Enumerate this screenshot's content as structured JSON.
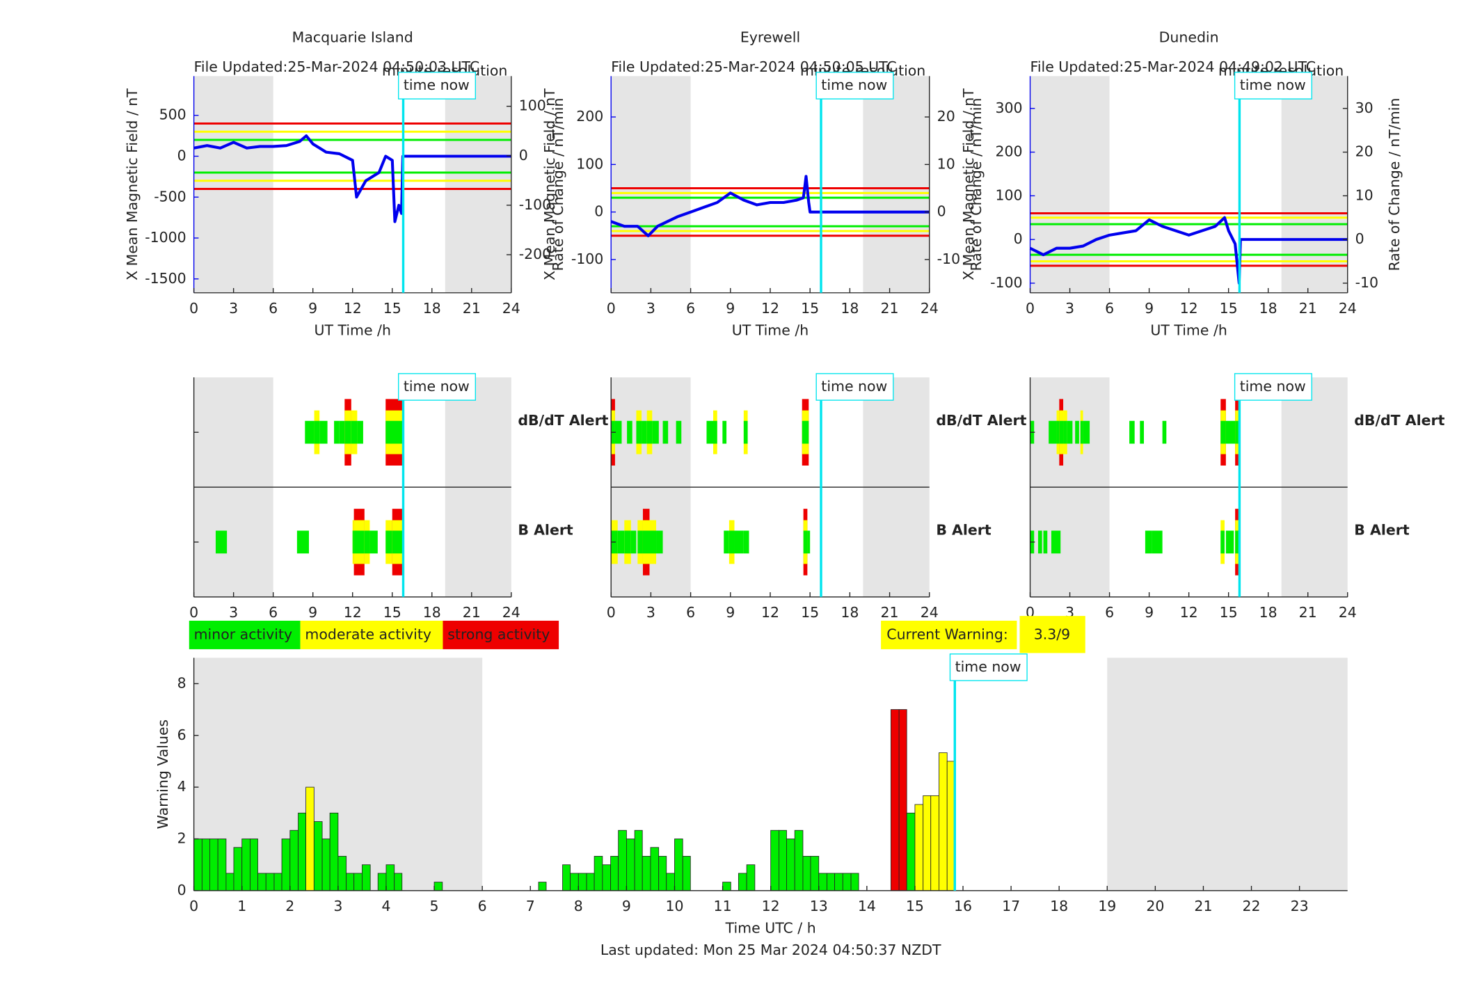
{
  "chart_data": [
    {
      "type": "line",
      "title": "Macquarie Island",
      "note": "File Updated:25-Mar-2024 04:50:03 UTC",
      "resolution": "minute resolution",
      "xlabel": "UT Time /h",
      "ylabel": "X Mean Magnetic Field / nT",
      "y2label": "Rate of Change / nT/min",
      "xlim": [
        0,
        24
      ],
      "xticks": [
        0,
        3,
        6,
        9,
        12,
        15,
        18,
        21,
        24
      ],
      "ylim": [
        -1670,
        980
      ],
      "yticks": [
        -1500,
        -1000,
        -500,
        0,
        500
      ],
      "y2lim": [
        -277,
        161
      ],
      "y2ticks": [
        -200,
        -100,
        0,
        100
      ],
      "shaded": [
        [
          0,
          6
        ],
        [
          19,
          24
        ]
      ],
      "time_now": 15.83,
      "time_now_label": "time now",
      "thresholds": [
        {
          "value": 400,
          "color": "#e00"
        },
        {
          "value": 300,
          "color": "#ff0"
        },
        {
          "value": 200,
          "color": "#0e0"
        },
        {
          "value": -200,
          "color": "#0e0"
        },
        {
          "value": -300,
          "color": "#ff0"
        },
        {
          "value": -400,
          "color": "#e00"
        }
      ],
      "series": [
        {
          "color": "#0000ee",
          "x": [
            0,
            1,
            2,
            3,
            4,
            5,
            6,
            7,
            8,
            8.5,
            9,
            10,
            11,
            12,
            12.3,
            13,
            14,
            14.5,
            15,
            15.2,
            15.5,
            15.7,
            15.8,
            24
          ],
          "values": [
            100,
            130,
            100,
            170,
            100,
            120,
            120,
            130,
            180,
            250,
            150,
            50,
            30,
            -50,
            -500,
            -300,
            -200,
            0,
            -50,
            -800,
            -600,
            -700,
            0,
            0
          ]
        }
      ]
    },
    {
      "type": "line",
      "title": "Eyrewell",
      "note": "File Updated:25-Mar-2024 04:50:05 UTC",
      "resolution": "minute resolution",
      "xlabel": "UT Time /h",
      "ylabel": "X Mean Magnetic Field / nT",
      "y2label": "Rate of Change / nT/min",
      "xlim": [
        0,
        24
      ],
      "xticks": [
        0,
        3,
        6,
        9,
        12,
        15,
        18,
        21,
        24
      ],
      "ylim": [
        -170,
        286
      ],
      "yticks": [
        -100,
        0,
        100,
        200
      ],
      "y2lim": [
        -17,
        28.6
      ],
      "y2ticks": [
        -10,
        0,
        10,
        20
      ],
      "shaded": [
        [
          0,
          6
        ],
        [
          19,
          24
        ]
      ],
      "time_now": 15.83,
      "time_now_label": "time now",
      "thresholds": [
        {
          "value": 50,
          "color": "#e00"
        },
        {
          "value": 40,
          "color": "#ff0"
        },
        {
          "value": 30,
          "color": "#0e0"
        },
        {
          "value": -30,
          "color": "#0e0"
        },
        {
          "value": -40,
          "color": "#ff0"
        },
        {
          "value": -50,
          "color": "#e00"
        }
      ],
      "series": [
        {
          "color": "#0000ee",
          "x": [
            0,
            1,
            2,
            2.8,
            3.5,
            5,
            6,
            7,
            8,
            9,
            10,
            11,
            12,
            13,
            14,
            14.5,
            14.7,
            14.9,
            15,
            24
          ],
          "values": [
            -20,
            -30,
            -30,
            -50,
            -30,
            -10,
            0,
            10,
            20,
            40,
            25,
            15,
            20,
            20,
            25,
            30,
            75,
            20,
            0,
            0
          ]
        }
      ]
    },
    {
      "type": "line",
      "title": "Dunedin",
      "note": "File Updated:25-Mar-2024 04:49:02 UTC",
      "resolution": "minute resolution",
      "xlabel": "UT Time /h",
      "ylabel": "X Mean Magnetic Field / nT",
      "y2label": "Rate of Change / nT/min",
      "xlim": [
        0,
        24
      ],
      "xticks": [
        0,
        3,
        6,
        9,
        12,
        15,
        18,
        21,
        24
      ],
      "ylim": [
        -122,
        374
      ],
      "yticks": [
        -100,
        0,
        100,
        200,
        300
      ],
      "y2lim": [
        -12.2,
        37.4
      ],
      "y2ticks": [
        -10,
        0,
        10,
        20,
        30
      ],
      "shaded": [
        [
          0,
          6
        ],
        [
          19,
          24
        ]
      ],
      "time_now": 15.83,
      "time_now_label": "time now",
      "thresholds": [
        {
          "value": 60,
          "color": "#e00"
        },
        {
          "value": 50,
          "color": "#ff0"
        },
        {
          "value": 35,
          "color": "#0e0"
        },
        {
          "value": -35,
          "color": "#0e0"
        },
        {
          "value": -50,
          "color": "#ff0"
        },
        {
          "value": -60,
          "color": "#e00"
        }
      ],
      "series": [
        {
          "color": "#0000ee",
          "x": [
            0,
            1,
            2,
            3,
            4,
            5,
            6,
            7,
            8,
            9,
            10,
            11,
            12,
            13,
            14,
            14.7,
            15,
            15.5,
            15.8,
            15.9,
            24
          ],
          "values": [
            -20,
            -35,
            -20,
            -20,
            -15,
            0,
            10,
            15,
            20,
            45,
            30,
            20,
            10,
            20,
            30,
            50,
            20,
            -10,
            -100,
            0,
            0
          ]
        }
      ]
    },
    {
      "type": "alert",
      "xlim": [
        0,
        24
      ],
      "xticks": [
        0,
        3,
        6,
        9,
        12,
        15,
        18,
        21,
        24
      ],
      "shaded": [
        [
          0,
          6
        ],
        [
          19,
          24
        ]
      ],
      "time_now": 15.83,
      "time_now_label": "time now",
      "rows": [
        {
          "name": "dB/dT Alert",
          "color": "#000",
          "segments": [
            [
              8.4,
              9.1,
              1
            ],
            [
              9.1,
              9.5,
              2
            ],
            [
              9.5,
              10.1,
              1
            ],
            [
              10.6,
              11.0,
              1
            ],
            [
              11.0,
              11.4,
              1
            ],
            [
              11.4,
              11.9,
              3
            ],
            [
              11.9,
              12.35,
              2
            ],
            [
              12.35,
              12.8,
              1
            ],
            [
              14.5,
              15.8,
              3
            ]
          ]
        },
        {
          "name": "B Alert",
          "color": "#0000ee",
          "segments": [
            [
              1.65,
              2.5,
              1
            ],
            [
              7.8,
              8.7,
              1
            ],
            [
              12.0,
              12.1,
              2
            ],
            [
              12.1,
              12.9,
              3
            ],
            [
              12.9,
              13.3,
              2
            ],
            [
              13.3,
              13.9,
              1
            ],
            [
              14.5,
              15.0,
              2
            ],
            [
              15.0,
              15.8,
              3
            ]
          ]
        }
      ]
    },
    {
      "type": "alert",
      "xlim": [
        0,
        24
      ],
      "xticks": [
        0,
        3,
        6,
        9,
        12,
        15,
        18,
        21,
        24
      ],
      "shaded": [
        [
          0,
          6
        ],
        [
          19,
          24
        ]
      ],
      "time_now": 15.83,
      "time_now_label": "time now",
      "rows": [
        {
          "name": "dB/dT Alert",
          "color": "#000",
          "segments": [
            [
              0,
              0.3,
              3
            ],
            [
              0.3,
              0.8,
              1
            ],
            [
              1.2,
              1.6,
              1
            ],
            [
              1.9,
              2.3,
              2
            ],
            [
              2.3,
              2.7,
              1
            ],
            [
              2.7,
              3.1,
              2
            ],
            [
              3.1,
              3.6,
              1
            ],
            [
              3.9,
              4.3,
              1
            ],
            [
              4.9,
              5.3,
              1
            ],
            [
              7.2,
              7.7,
              1
            ],
            [
              7.7,
              8.0,
              2
            ],
            [
              8.4,
              8.7,
              1
            ],
            [
              10.0,
              10.3,
              2
            ],
            [
              14.4,
              14.9,
              3
            ]
          ]
        },
        {
          "name": "B Alert",
          "color": "#0000ee",
          "segments": [
            [
              0,
              0.5,
              2
            ],
            [
              0.5,
              1.0,
              1
            ],
            [
              1.0,
              1.5,
              2
            ],
            [
              1.5,
              1.9,
              1
            ],
            [
              2.0,
              2.4,
              2
            ],
            [
              2.4,
              2.9,
              3
            ],
            [
              2.9,
              3.4,
              2
            ],
            [
              3.4,
              3.9,
              1
            ],
            [
              8.5,
              8.9,
              1
            ],
            [
              8.9,
              9.3,
              2
            ],
            [
              9.3,
              10.0,
              1
            ],
            [
              10.0,
              10.4,
              1
            ],
            [
              14.5,
              14.8,
              3
            ],
            [
              14.8,
              15.0,
              1
            ]
          ]
        }
      ]
    },
    {
      "type": "alert",
      "xlim": [
        0,
        24
      ],
      "xticks": [
        0,
        3,
        6,
        9,
        12,
        15,
        18,
        21,
        24
      ],
      "shaded": [
        [
          0,
          6
        ],
        [
          19,
          24
        ]
      ],
      "time_now": 15.83,
      "time_now_label": "time now",
      "rows": [
        {
          "name": "dB/dT Alert",
          "color": "#000",
          "segments": [
            [
              0,
              0.3,
              1
            ],
            [
              1.4,
              2.0,
              1
            ],
            [
              2.0,
              2.2,
              2
            ],
            [
              2.2,
              2.5,
              3
            ],
            [
              2.5,
              2.8,
              2
            ],
            [
              2.8,
              3.2,
              1
            ],
            [
              3.4,
              3.7,
              1
            ],
            [
              3.8,
              4.0,
              2
            ],
            [
              4.0,
              4.5,
              1
            ],
            [
              7.5,
              7.9,
              1
            ],
            [
              8.3,
              8.6,
              1
            ],
            [
              10.0,
              10.3,
              1
            ],
            [
              14.4,
              14.8,
              3
            ],
            [
              14.8,
              15.5,
              1
            ],
            [
              15.5,
              15.8,
              3
            ]
          ]
        },
        {
          "name": "B Alert",
          "color": "#0000ee",
          "segments": [
            [
              0,
              0.3,
              1
            ],
            [
              0.6,
              0.9,
              1
            ],
            [
              1.0,
              1.3,
              1
            ],
            [
              1.6,
              2.3,
              1
            ],
            [
              8.7,
              9.2,
              1
            ],
            [
              9.2,
              10.0,
              1
            ],
            [
              14.4,
              14.7,
              2
            ],
            [
              14.8,
              15.4,
              1
            ],
            [
              15.5,
              15.8,
              3
            ]
          ]
        }
      ]
    },
    {
      "type": "histogram",
      "xlabel": "Time UTC / h",
      "ylabel": "Warning Values",
      "footer": "Last updated: Mon 25 Mar 2024 04:50:37 NZDT",
      "xlim": [
        0,
        24
      ],
      "xticks": [
        0,
        1,
        2,
        3,
        4,
        5,
        6,
        7,
        8,
        9,
        10,
        11,
        12,
        13,
        14,
        15,
        16,
        17,
        18,
        19,
        20,
        21,
        22,
        23
      ],
      "ylim": [
        0,
        9
      ],
      "yticks": [
        0,
        2,
        4,
        6,
        8
      ],
      "shaded": [
        [
          0,
          6
        ],
        [
          19,
          24
        ]
      ],
      "time_now": 15.83,
      "time_now_label": "time now",
      "bins": [
        0,
        0.17,
        0.33,
        0.5,
        0.67,
        0.83,
        1,
        1.17,
        1.33,
        1.5,
        1.67,
        1.83,
        2,
        2.17,
        2.33,
        2.5,
        2.67,
        2.83,
        3,
        3.17,
        3.33,
        3.5,
        3.67,
        3.83,
        4,
        4.17,
        4.33,
        4.5,
        4.67,
        4.83,
        5,
        5.17,
        5.33,
        5.5,
        5.67,
        5.83,
        6,
        6.17,
        6.33,
        6.5,
        6.67,
        6.83,
        7,
        7.17,
        7.33,
        7.5,
        7.67,
        7.83,
        8,
        8.17,
        8.33,
        8.5,
        8.67,
        8.83,
        9,
        9.17,
        9.33,
        9.5,
        9.67,
        9.83,
        10,
        10.17,
        10.33,
        10.5,
        10.67,
        10.83,
        11,
        11.17,
        11.33,
        11.5,
        11.67,
        11.83,
        12,
        12.17,
        12.33,
        12.5,
        12.67,
        12.83,
        13,
        13.17,
        13.33,
        13.5,
        13.67,
        13.83,
        14,
        14.17,
        14.33,
        14.5,
        14.67,
        14.83,
        15,
        15.17,
        15.33,
        15.5,
        15.67,
        15.83
      ],
      "values": [
        2,
        2,
        2,
        2,
        0.67,
        1.67,
        2,
        2,
        0.67,
        0.67,
        0.67,
        2,
        2.33,
        3,
        4,
        2.67,
        2,
        3,
        1.33,
        0.67,
        0.67,
        1,
        0,
        0.67,
        1,
        0.67,
        0,
        0,
        0,
        0,
        0.33,
        0,
        0,
        0,
        0,
        0,
        0,
        0,
        0,
        0,
        0,
        0,
        0,
        0.33,
        0,
        0,
        1,
        0.67,
        0.67,
        0.67,
        1.33,
        1,
        1.33,
        2.33,
        2,
        2.33,
        1.33,
        1.67,
        1.33,
        0.67,
        2,
        1.33,
        0,
        0,
        0,
        0,
        0.33,
        0,
        0.67,
        1,
        0,
        0,
        2.33,
        2.33,
        2,
        2.33,
        1.33,
        1.33,
        0.67,
        0.67,
        0.67,
        0.67,
        0.67,
        0,
        0,
        0,
        0,
        7,
        7,
        3,
        3.33,
        3.67,
        3.67,
        5.33,
        5
      ],
      "colors": [
        "#0e0",
        "#0e0",
        "#0e0",
        "#0e0",
        "#0e0",
        "#0e0",
        "#0e0",
        "#0e0",
        "#0e0",
        "#0e0",
        "#0e0",
        "#0e0",
        "#0e0",
        "#0e0",
        "#ff0",
        "#0e0",
        "#0e0",
        "#0e0",
        "#0e0",
        "#0e0",
        "#0e0",
        "#0e0",
        "#0e0",
        "#0e0",
        "#0e0",
        "#0e0",
        "#0e0",
        "#0e0",
        "#0e0",
        "#0e0",
        "#0e0",
        "#0e0",
        "#0e0",
        "#0e0",
        "#0e0",
        "#0e0",
        "#0e0",
        "#0e0",
        "#0e0",
        "#0e0",
        "#0e0",
        "#0e0",
        "#0e0",
        "#0e0",
        "#0e0",
        "#0e0",
        "#0e0",
        "#0e0",
        "#0e0",
        "#0e0",
        "#0e0",
        "#0e0",
        "#0e0",
        "#0e0",
        "#0e0",
        "#0e0",
        "#0e0",
        "#0e0",
        "#0e0",
        "#0e0",
        "#0e0",
        "#0e0",
        "#0e0",
        "#0e0",
        "#0e0",
        "#0e0",
        "#0e0",
        "#0e0",
        "#0e0",
        "#0e0",
        "#0e0",
        "#0e0",
        "#0e0",
        "#0e0",
        "#0e0",
        "#0e0",
        "#0e0",
        "#0e0",
        "#0e0",
        "#0e0",
        "#0e0",
        "#0e0",
        "#0e0",
        "#0e0",
        "#0e0",
        "#0e0",
        "#0e0",
        "#e00",
        "#e00",
        "#0e0",
        "#ff0",
        "#ff0",
        "#ff0",
        "#ff0",
        "#ff0"
      ]
    }
  ],
  "levels": [
    {
      "name": "minor activity",
      "color": "#0e0"
    },
    {
      "name": "moderate activity",
      "color": "#ff0"
    },
    {
      "name": "strong activity",
      "color": "#e00"
    }
  ],
  "current_warning": {
    "label": "Current Warning:",
    "value": "3.3/9"
  }
}
